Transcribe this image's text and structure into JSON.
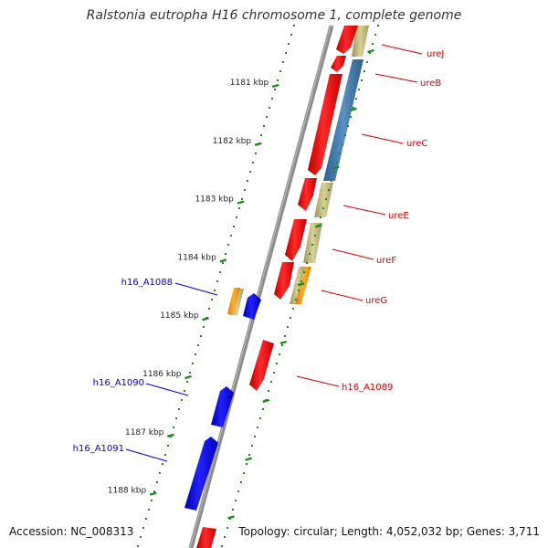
{
  "title": "Ralstonia eutropha H16 chromosome 1, complete genome",
  "footer": {
    "accession": "Accession: NC_008313",
    "topology": "Topology: circular; Length: 4,052,032 bp; Genes: 3,711"
  },
  "colors": {
    "backbone": "#8c8c8c",
    "tick": "#1e8a1e",
    "cds_forward": "#ff0000",
    "cds_reverse": "#0000ee",
    "gene_bar_olive": "#c8c080",
    "gene_bar_steelblue": "#4a7fb0",
    "gene_bar_orange": "#ff9a10",
    "label_red": "#cc0000",
    "label_blue": "#0000cc"
  },
  "scale_labels": [
    "1181 kbp",
    "1182 kbp",
    "1183 kbp",
    "1184 kbp",
    "1185 kbp",
    "1186 kbp",
    "1187 kbp",
    "1188 kbp"
  ],
  "gene_labels": [
    {
      "text": "ureJ",
      "strand": "forward"
    },
    {
      "text": "ureB",
      "strand": "forward"
    },
    {
      "text": "ureC",
      "strand": "forward"
    },
    {
      "text": "ureE",
      "strand": "forward"
    },
    {
      "text": "ureF",
      "strand": "forward"
    },
    {
      "text": "ureG",
      "strand": "forward"
    },
    {
      "text": "h16_A1089",
      "strand": "forward"
    },
    {
      "text": "h16_A1088",
      "strand": "reverse"
    },
    {
      "text": "h16_A1090",
      "strand": "reverse"
    },
    {
      "text": "h16_A1091",
      "strand": "reverse"
    }
  ]
}
